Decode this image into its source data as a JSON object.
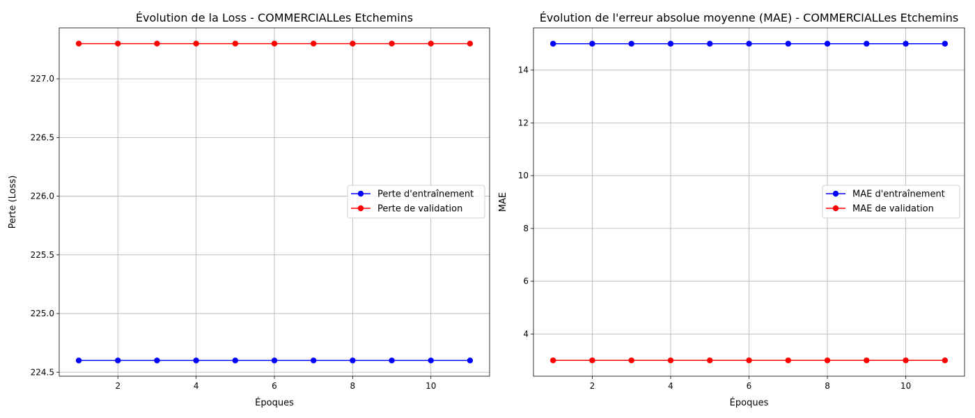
{
  "chart_data": [
    {
      "type": "line",
      "title": "Évolution de la Loss - COMMERCIALLes Etchemins",
      "xlabel": "Époques",
      "ylabel": "Perte (Loss)",
      "x": [
        1,
        2,
        3,
        4,
        5,
        6,
        7,
        8,
        9,
        10,
        11
      ],
      "xlim": [
        0.5,
        11.5
      ],
      "ylim": [
        224.466,
        227.434
      ],
      "xticks": [
        2,
        4,
        6,
        8,
        10
      ],
      "yticks": [
        224.5,
        225.0,
        225.5,
        226.0,
        226.5,
        227.0
      ],
      "ytick_labels": [
        "224.5",
        "225.0",
        "225.5",
        "226.0",
        "226.5",
        "227.0"
      ],
      "grid": true,
      "legend_position": "center-right",
      "series": [
        {
          "name": "Perte d'entraînement",
          "color": "#0000ff",
          "values": [
            224.6,
            224.6,
            224.6,
            224.6,
            224.6,
            224.6,
            224.6,
            224.6,
            224.6,
            224.6,
            224.6
          ]
        },
        {
          "name": "Perte de validation",
          "color": "#ff0000",
          "values": [
            227.3,
            227.3,
            227.3,
            227.3,
            227.3,
            227.3,
            227.3,
            227.3,
            227.3,
            227.3,
            227.3
          ]
        }
      ]
    },
    {
      "type": "line",
      "title": "Évolution de l'erreur absolue moyenne (MAE) - COMMERCIALLes Etchemins",
      "xlabel": "Époques",
      "ylabel": "MAE",
      "x": [
        1,
        2,
        3,
        4,
        5,
        6,
        7,
        8,
        9,
        10,
        11
      ],
      "xlim": [
        0.5,
        11.5
      ],
      "ylim": [
        2.4,
        15.6
      ],
      "xticks": [
        2,
        4,
        6,
        8,
        10
      ],
      "yticks": [
        4,
        6,
        8,
        10,
        12,
        14
      ],
      "ytick_labels": [
        "4",
        "6",
        "8",
        "10",
        "12",
        "14"
      ],
      "grid": true,
      "legend_position": "center-right",
      "series": [
        {
          "name": "MAE d'entraînement",
          "color": "#0000ff",
          "values": [
            15.0,
            15.0,
            15.0,
            15.0,
            15.0,
            15.0,
            15.0,
            15.0,
            15.0,
            15.0,
            15.0
          ]
        },
        {
          "name": "MAE de validation",
          "color": "#ff0000",
          "values": [
            3.0,
            3.0,
            3.0,
            3.0,
            3.0,
            3.0,
            3.0,
            3.0,
            3.0,
            3.0,
            3.0
          ]
        }
      ]
    }
  ]
}
